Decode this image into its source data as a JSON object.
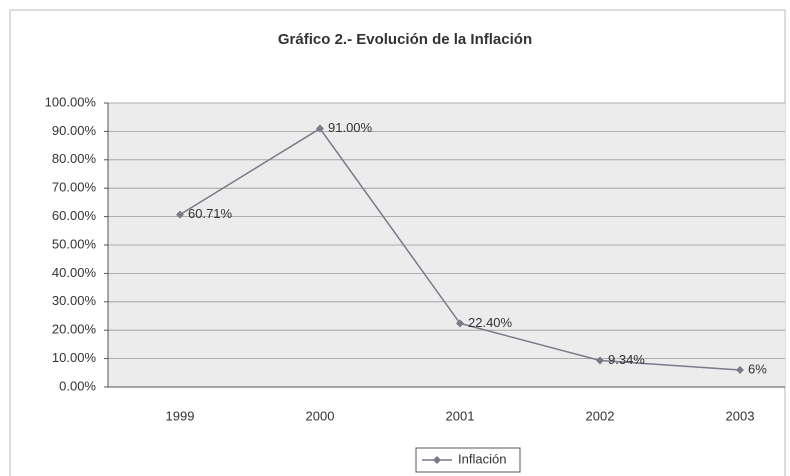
{
  "chart_data": {
    "type": "line",
    "title": "Gráfico 2.- Evolución de la Inflación",
    "categories": [
      "1999",
      "2000",
      "2001",
      "2002",
      "2003"
    ],
    "series": [
      {
        "name": "Inflación",
        "color": "#7a7a8a",
        "values": [
          60.71,
          91,
          22.4,
          9.34,
          6
        ],
        "value_labels": [
          "60.71%",
          "91.00%",
          "22.40%",
          "9.34%",
          "6%"
        ]
      }
    ],
    "ylim": [
      0,
      100
    ],
    "yticks": [
      {
        "value": 0,
        "label": "0.00%"
      },
      {
        "value": 10,
        "label": "10.00%"
      },
      {
        "value": 20,
        "label": "20.00%"
      },
      {
        "value": 30,
        "label": "30.00%"
      },
      {
        "value": 40,
        "label": "40.00%"
      },
      {
        "value": 50,
        "label": "50.00%"
      },
      {
        "value": 60,
        "label": "60.00%"
      },
      {
        "value": 70,
        "label": "70.00%"
      },
      {
        "value": 80,
        "label": "80.00%"
      },
      {
        "value": 90,
        "label": "90.00%"
      },
      {
        "value": 100,
        "label": "100.00%"
      }
    ],
    "grid": true,
    "legend": "bottom"
  }
}
